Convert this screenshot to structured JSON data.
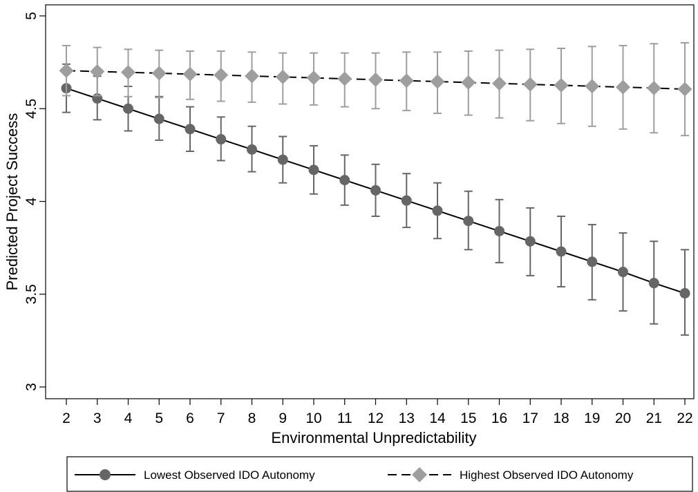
{
  "chart_data": {
    "type": "line",
    "title": "",
    "xlabel": "Environmental Unpredictability",
    "ylabel": "Predicted Project Success",
    "xlim": [
      2,
      22
    ],
    "ylim": [
      3,
      5
    ],
    "x": [
      2,
      3,
      4,
      5,
      6,
      7,
      8,
      9,
      10,
      11,
      12,
      13,
      14,
      15,
      16,
      17,
      18,
      19,
      20,
      21,
      22
    ],
    "x_ticks": [
      "2",
      "3",
      "4",
      "5",
      "6",
      "7",
      "8",
      "9",
      "10",
      "11",
      "12",
      "13",
      "14",
      "15",
      "16",
      "17",
      "18",
      "19",
      "20",
      "21",
      "22"
    ],
    "y_ticks": [
      "3",
      "3.5",
      "4",
      "4.5",
      "5"
    ],
    "grid": false,
    "legend_position": "bottom",
    "series": [
      {
        "name": "Lowest Observed IDO Autonomy",
        "style": "solid",
        "marker": "circle",
        "color": "#666666",
        "values": [
          4.61,
          4.555,
          4.5,
          4.445,
          4.39,
          4.335,
          4.28,
          4.225,
          4.17,
          4.115,
          4.06,
          4.005,
          3.95,
          3.895,
          3.84,
          3.785,
          3.73,
          3.675,
          3.62,
          3.56,
          3.505
        ],
        "ci_low": [
          4.48,
          4.44,
          4.38,
          4.33,
          4.27,
          4.22,
          4.16,
          4.1,
          4.04,
          3.98,
          3.92,
          3.86,
          3.8,
          3.74,
          3.67,
          3.6,
          3.54,
          3.47,
          3.41,
          3.34,
          3.28
        ],
        "ci_high": [
          4.74,
          4.675,
          4.62,
          4.565,
          4.51,
          4.455,
          4.405,
          4.35,
          4.3,
          4.25,
          4.2,
          4.15,
          4.1,
          4.055,
          4.01,
          3.965,
          3.92,
          3.875,
          3.83,
          3.785,
          3.74
        ]
      },
      {
        "name": "Highest Observed IDO Autonomy",
        "style": "dashed",
        "marker": "diamond",
        "color": "#9e9e9e",
        "values": [
          4.705,
          4.7,
          4.696,
          4.691,
          4.686,
          4.681,
          4.676,
          4.671,
          4.666,
          4.661,
          4.656,
          4.651,
          4.646,
          4.641,
          4.636,
          4.631,
          4.626,
          4.621,
          4.616,
          4.611,
          4.605
        ],
        "ci_low": [
          4.57,
          4.57,
          4.565,
          4.56,
          4.55,
          4.54,
          4.535,
          4.525,
          4.52,
          4.51,
          4.5,
          4.49,
          4.475,
          4.465,
          4.45,
          4.435,
          4.42,
          4.405,
          4.39,
          4.37,
          4.355
        ],
        "ci_high": [
          4.84,
          4.83,
          4.82,
          4.815,
          4.81,
          4.81,
          4.805,
          4.8,
          4.8,
          4.8,
          4.8,
          4.805,
          4.805,
          4.81,
          4.815,
          4.82,
          4.825,
          4.835,
          4.84,
          4.85,
          4.855
        ]
      }
    ]
  }
}
